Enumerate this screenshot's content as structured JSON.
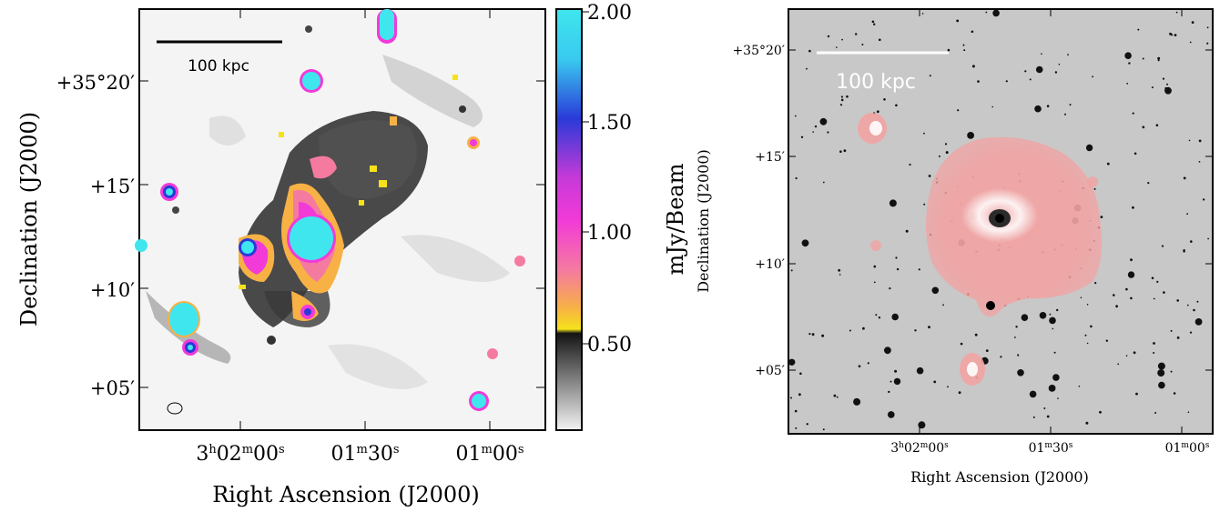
{
  "left_panel": {
    "scale_bar_label": "100 kpc",
    "y_axis_label": "Declination (J2000)",
    "x_axis_label": "Right Ascension (J2000)",
    "y_ticks": [
      "+35°20′",
      "+15′",
      "+10′",
      "+05′"
    ],
    "x_ticks": [
      {
        "h": "3",
        "hs": "h",
        "m": "02",
        "ms": "m",
        "s": "00",
        "ss": "s"
      },
      {
        "m": "01",
        "ms": "m",
        "s": "30",
        "ss": "s"
      },
      {
        "m": "01",
        "ms": "m",
        "s": "00",
        "ss": "s"
      }
    ],
    "colorbar": {
      "label": "mJy/Beam",
      "ticks": [
        "2.00",
        "1.50",
        "1.00",
        "0.50"
      ]
    }
  },
  "right_panel": {
    "scale_bar_label": "100 kpc",
    "y_axis_label": "Declination (J2000)",
    "x_axis_label": "Right Ascension (J2000)",
    "y_ticks": [
      "+35°20′",
      "+15′",
      "+10′",
      "+05′"
    ],
    "x_ticks": [
      {
        "h": "3",
        "hs": "h",
        "m": "02",
        "ms": "m",
        "s": "00",
        "ss": "s"
      },
      {
        "m": "01",
        "ms": "m",
        "s": "30",
        "ss": "s"
      },
      {
        "m": "01",
        "ms": "m",
        "s": "00",
        "ss": "s"
      }
    ]
  },
  "colors": {
    "cyan": "#3fe6ee",
    "blue": "#2a3ad8",
    "magenta": "#f23ad8",
    "pink": "#f57aa0",
    "orange": "#f7b145",
    "yellow": "#f5e21a",
    "overlay_red": "#f2a3a3"
  }
}
